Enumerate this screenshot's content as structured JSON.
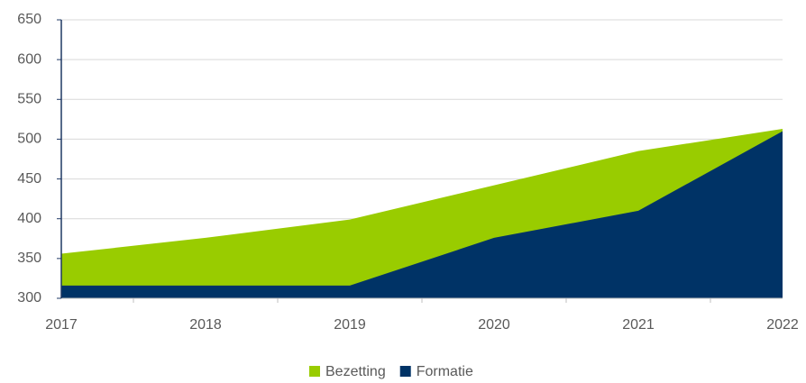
{
  "chart_data": {
    "type": "area",
    "categories": [
      "2017",
      "2018",
      "2019",
      "2020",
      "2021",
      "2022"
    ],
    "series": [
      {
        "name": "Bezetting",
        "color": "#99cc00",
        "values": [
          356,
          376,
          399,
          442,
          485,
          513
        ]
      },
      {
        "name": "Formatie",
        "color": "#003366",
        "values": [
          316,
          316,
          316,
          376,
          410,
          510
        ]
      }
    ],
    "ylim": [
      300,
      650
    ],
    "yticks": [
      300,
      350,
      400,
      450,
      500,
      550,
      600,
      650
    ],
    "grid": true,
    "legend": "bottom"
  }
}
